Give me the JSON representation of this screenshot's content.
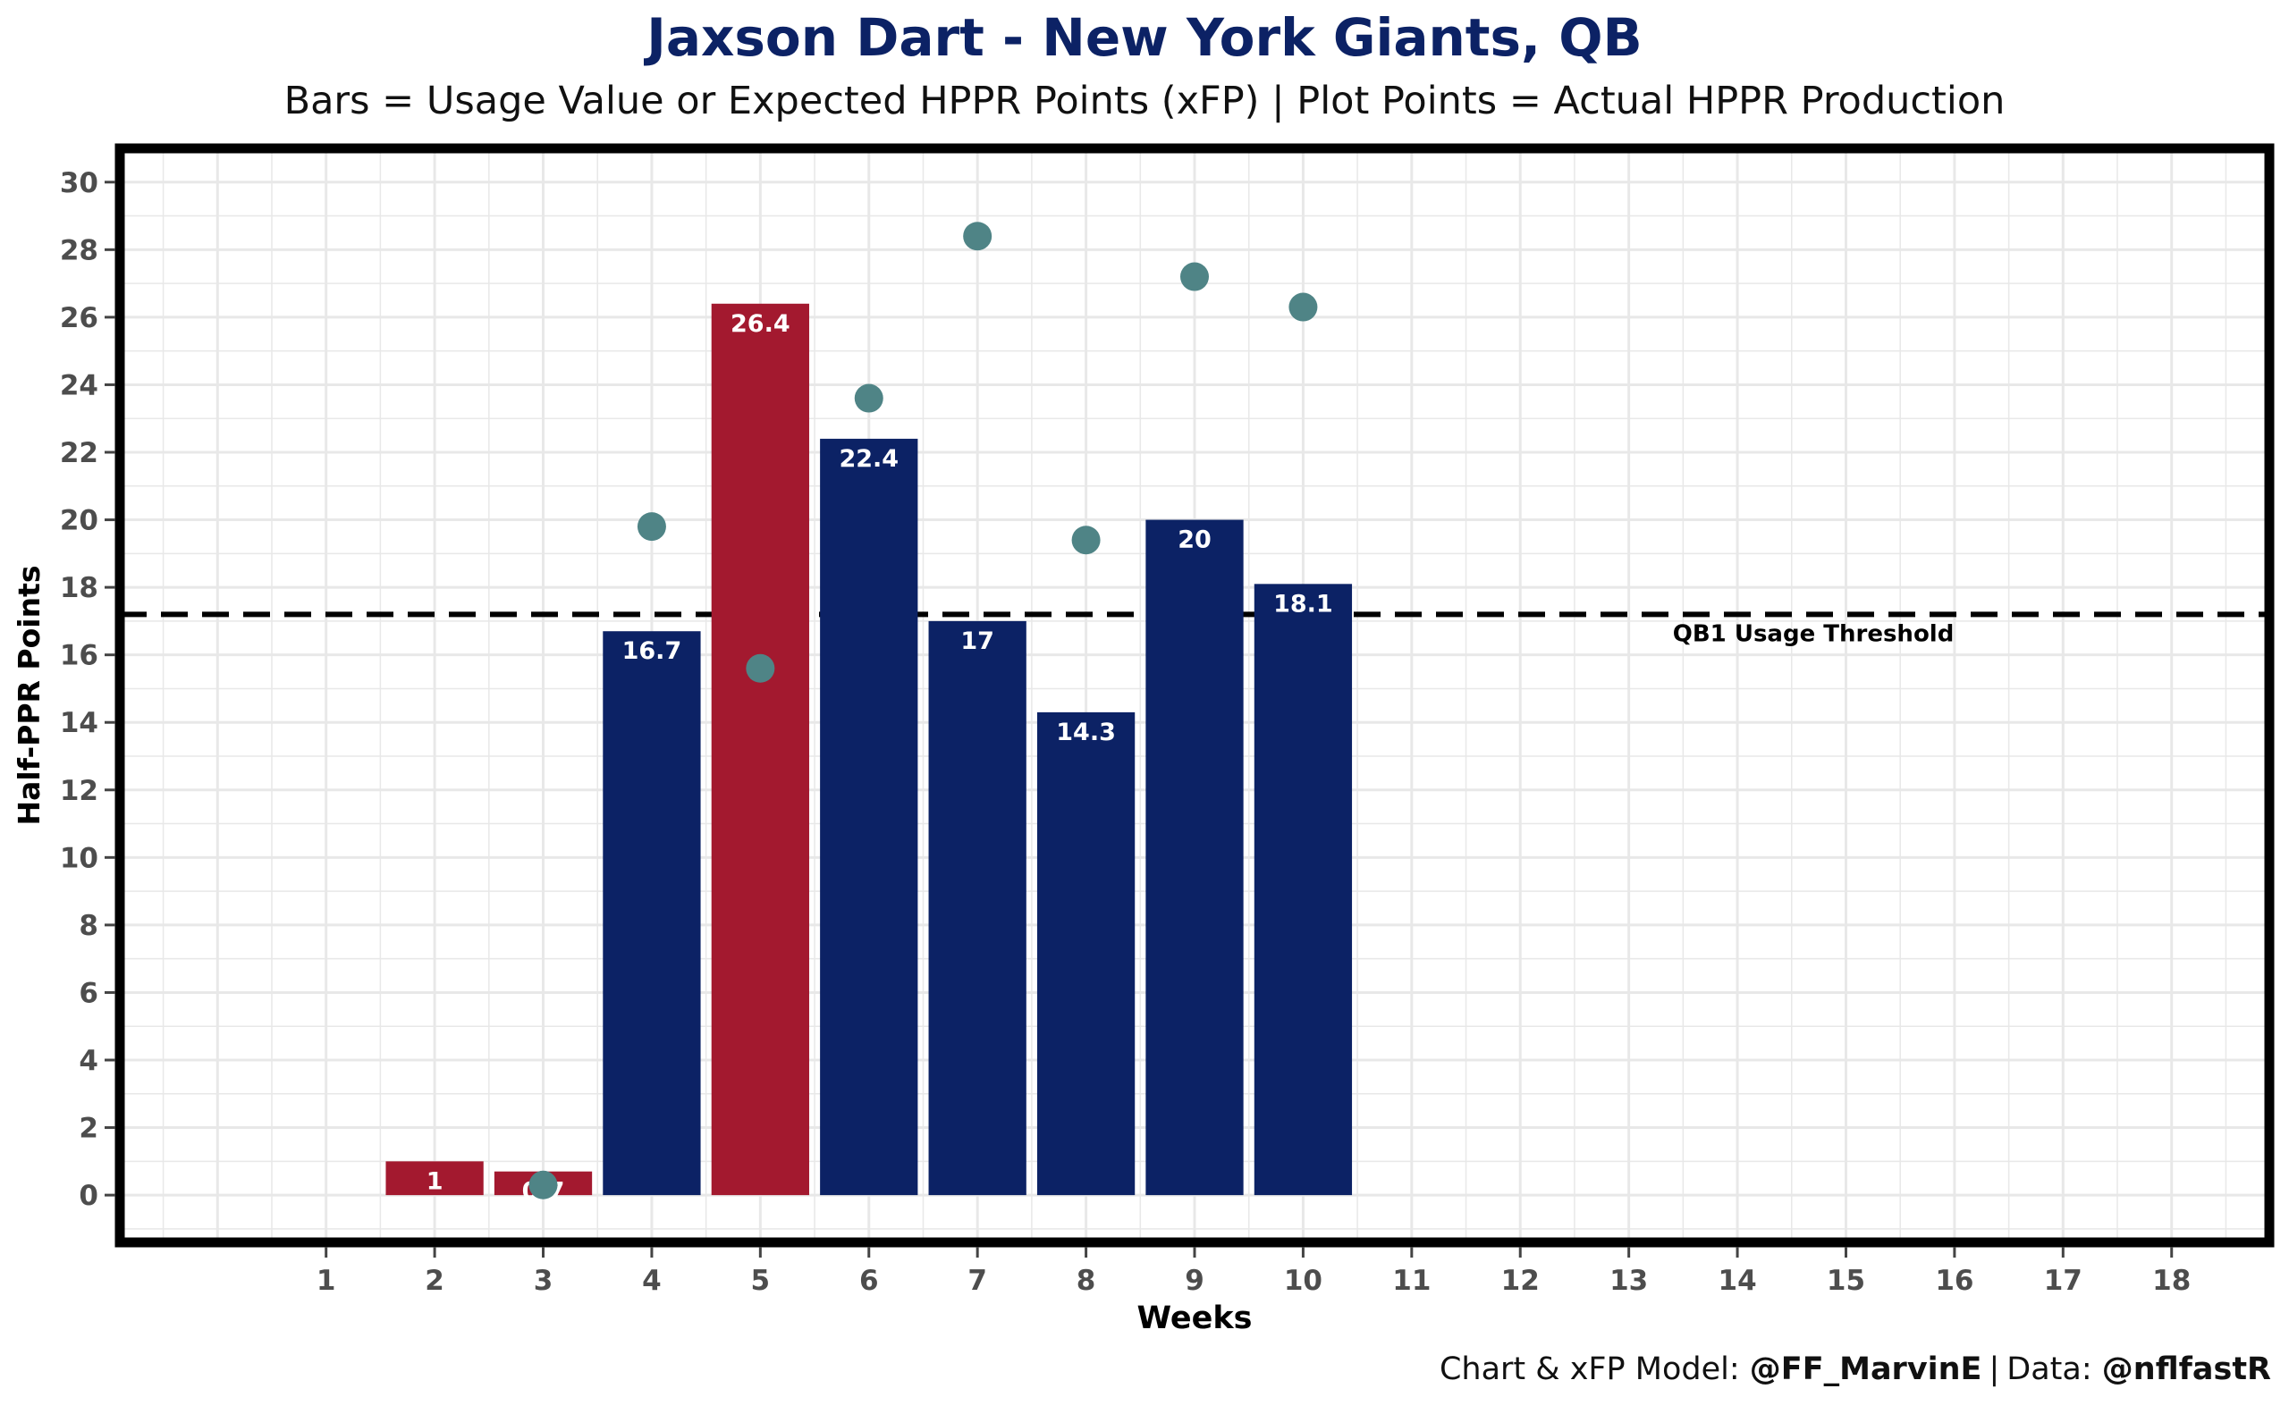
{
  "header": {
    "title": "Jaxson Dart - New York Giants, QB",
    "subtitle": "Bars = Usage Value or Expected HPPR Points (xFP) | Plot Points = Actual HPPR Production"
  },
  "footer": {
    "credit_prefix": "Chart & xFP Model:",
    "credit_handle": "@FF_MarvinE",
    "data_prefix": "Data:",
    "data_handle": "@nflfastR"
  },
  "colors": {
    "bar_above": "#0c2265",
    "bar_below": "#a3192f",
    "point": "#4f8486",
    "border": "#000000",
    "grid": "#e8e8e8"
  },
  "chart_data": {
    "type": "bar",
    "xlabel": "Weeks",
    "ylabel": "Half-PPR Points",
    "x_ticks": [
      1,
      2,
      3,
      4,
      5,
      6,
      7,
      8,
      9,
      10,
      11,
      12,
      13,
      14,
      15,
      16,
      17,
      18
    ],
    "ylim": [
      -1.4,
      31
    ],
    "y_ticks": [
      0,
      2,
      4,
      6,
      8,
      10,
      12,
      14,
      16,
      18,
      20,
      22,
      24,
      26,
      28,
      30
    ],
    "grid": true,
    "bars": {
      "name": "Usage Value or Expected HPPR Points (xFP)",
      "weeks": [
        2,
        3,
        4,
        5,
        6,
        7,
        8,
        9,
        10
      ],
      "values": [
        1,
        0.7,
        16.7,
        26.4,
        22.4,
        17,
        14.3,
        20,
        18.1
      ],
      "labels": [
        "1",
        "0.7",
        "16.7",
        "26.4",
        "22.4",
        "17",
        "14.3",
        "20",
        "18.1"
      ],
      "colors": [
        "#a3192f",
        "#a3192f",
        "#0c2265",
        "#a3192f",
        "#0c2265",
        "#0c2265",
        "#0c2265",
        "#0c2265",
        "#0c2265"
      ]
    },
    "points": {
      "name": "Actual HPPR Production",
      "weeks": [
        3,
        4,
        5,
        6,
        7,
        8,
        9,
        10
      ],
      "values": [
        0.3,
        19.8,
        15.6,
        23.6,
        28.4,
        19.4,
        27.2,
        26.3
      ]
    },
    "threshold": {
      "value": 17.2,
      "label": "QB1 Usage Threshold"
    }
  }
}
